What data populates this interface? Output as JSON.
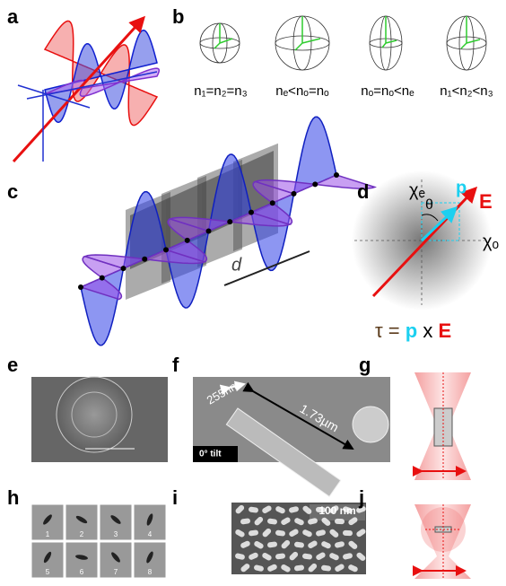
{
  "panel_labels": [
    "a",
    "b",
    "c",
    "d",
    "e",
    "f",
    "g",
    "h",
    "i",
    "j"
  ],
  "b": {
    "labels": [
      "n₁=n₂=n₃",
      "nₑ<nₒ=nₒ",
      "nₒ=nₒ<nₑ",
      "n₁<n₂<n₃"
    ]
  },
  "c": {
    "distance": "d"
  },
  "d": {
    "chi_e": "χₑ",
    "p": "p",
    "theta": "θ",
    "E": "E",
    "chi_o": "χₒ",
    "tau": "τ =",
    "tau_p": "p",
    "tau_x": "x",
    "tau_E": "E"
  },
  "f": {
    "width": "255nm",
    "length": "1.73µm",
    "tilt": "0° tilt"
  },
  "h": {
    "frames": [
      "1",
      "2",
      "3",
      "4",
      "5",
      "6",
      "7",
      "8"
    ]
  },
  "i": {
    "scale": "100 nm"
  }
}
